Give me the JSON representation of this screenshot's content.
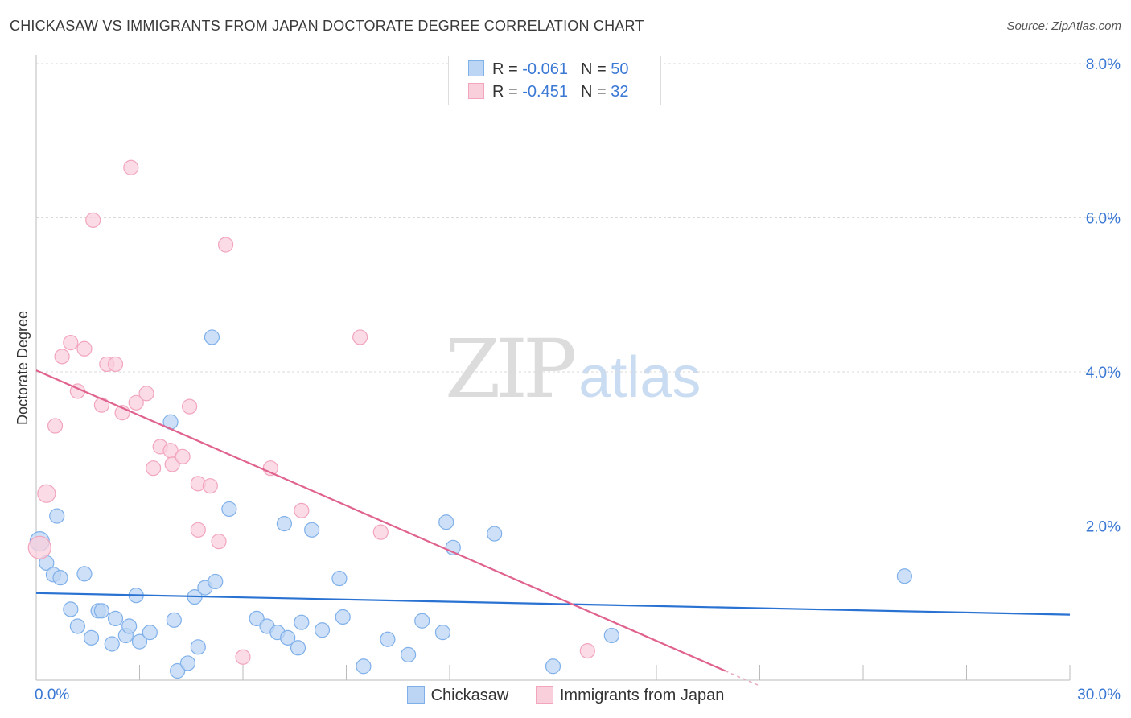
{
  "title": "CHICKASAW VS IMMIGRANTS FROM JAPAN DOCTORATE DEGREE CORRELATION CHART",
  "source": "Source: ZipAtlas.com",
  "watermark": {
    "zip": "ZIP",
    "atlas": "atlas"
  },
  "legend": {
    "rows": [
      {
        "r_label": "R = ",
        "r_value": "-0.061",
        "n_label": "N = ",
        "n_value": "50"
      },
      {
        "r_label": "R = ",
        "r_value": "-0.451",
        "n_label": "N = ",
        "n_value": "32"
      }
    ]
  },
  "chart_data": {
    "type": "scatter",
    "title": "CHICKASAW VS IMMIGRANTS FROM JAPAN DOCTORATE DEGREE CORRELATION CHART",
    "xlabel": "",
    "ylabel": "Doctorate Degree",
    "xlim": [
      0,
      30
    ],
    "ylim": [
      0,
      8.0
    ],
    "x_tick_labels": [
      "0.0%",
      "30.0%"
    ],
    "y_tick_labels": [
      "2.0%",
      "4.0%",
      "6.0%",
      "8.0%"
    ],
    "y_ticks": [
      2.0,
      4.0,
      6.0,
      8.0
    ],
    "grid": true,
    "legend_position": "top-center",
    "series": [
      {
        "name": "Chickasaw",
        "color": "#7fb0ea",
        "fill": "#bcd5f4",
        "line_color": "#2a72d2",
        "r": "-0.061",
        "n": "50",
        "trend": {
          "x": [
            0,
            30
          ],
          "y": [
            1.13,
            0.85
          ]
        },
        "points": [
          [
            0.1,
            1.8,
            12
          ],
          [
            0.3,
            1.52,
            9
          ],
          [
            0.5,
            1.37,
            9
          ],
          [
            0.6,
            2.13,
            9
          ],
          [
            0.7,
            1.33,
            9
          ],
          [
            1.0,
            0.92,
            9
          ],
          [
            1.2,
            0.7,
            9
          ],
          [
            1.4,
            1.38,
            9
          ],
          [
            1.6,
            0.55,
            9
          ],
          [
            1.8,
            0.9,
            9
          ],
          [
            1.9,
            0.9,
            9
          ],
          [
            2.2,
            0.47,
            9
          ],
          [
            2.3,
            0.8,
            9
          ],
          [
            2.6,
            0.58,
            9
          ],
          [
            2.7,
            0.7,
            9
          ],
          [
            2.9,
            1.1,
            9
          ],
          [
            3.0,
            0.5,
            9
          ],
          [
            3.3,
            0.62,
            9
          ],
          [
            3.9,
            3.35,
            9
          ],
          [
            4.0,
            0.78,
            9
          ],
          [
            4.1,
            0.12,
            9
          ],
          [
            4.4,
            0.22,
            9
          ],
          [
            4.6,
            1.08,
            9
          ],
          [
            4.7,
            0.43,
            9
          ],
          [
            4.9,
            1.2,
            9
          ],
          [
            5.2,
            1.28,
            9
          ],
          [
            5.1,
            4.45,
            9
          ],
          [
            5.6,
            2.22,
            9
          ],
          [
            6.4,
            0.8,
            9
          ],
          [
            6.7,
            0.7,
            9
          ],
          [
            7.0,
            0.62,
            9
          ],
          [
            7.2,
            2.03,
            9
          ],
          [
            7.3,
            0.55,
            9
          ],
          [
            7.6,
            0.42,
            9
          ],
          [
            7.7,
            0.75,
            9
          ],
          [
            8.0,
            1.95,
            9
          ],
          [
            8.3,
            0.65,
            9
          ],
          [
            8.8,
            1.32,
            9
          ],
          [
            8.9,
            0.82,
            9
          ],
          [
            9.5,
            0.18,
            9
          ],
          [
            10.2,
            0.53,
            9
          ],
          [
            10.8,
            0.33,
            9
          ],
          [
            11.2,
            0.77,
            9
          ],
          [
            11.8,
            0.62,
            9
          ],
          [
            11.9,
            2.05,
            9
          ],
          [
            12.1,
            1.72,
            9
          ],
          [
            13.3,
            1.9,
            9
          ],
          [
            15.0,
            0.18,
            9
          ],
          [
            16.7,
            0.58,
            9
          ],
          [
            25.2,
            1.35,
            9
          ]
        ]
      },
      {
        "name": "Immigrants from Japan",
        "color": "#f2a5bd",
        "fill": "#f9cfdc",
        "line_color": "#e0628f",
        "r": "-0.451",
        "n": "32",
        "trend": {
          "x": [
            0,
            20.0
          ],
          "y": [
            4.02,
            0.12
          ]
        },
        "points": [
          [
            0.1,
            1.72,
            14
          ],
          [
            0.3,
            2.42,
            11
          ],
          [
            0.55,
            3.3,
            9
          ],
          [
            0.75,
            4.2,
            9
          ],
          [
            1.0,
            4.38,
            9
          ],
          [
            1.2,
            3.75,
            9
          ],
          [
            1.4,
            4.3,
            9
          ],
          [
            1.65,
            5.97,
            9
          ],
          [
            1.9,
            3.57,
            9
          ],
          [
            2.05,
            4.1,
            9
          ],
          [
            2.3,
            4.1,
            9
          ],
          [
            2.5,
            3.47,
            9
          ],
          [
            2.75,
            6.65,
            9
          ],
          [
            2.9,
            3.6,
            9
          ],
          [
            3.2,
            3.72,
            9
          ],
          [
            3.4,
            2.75,
            9
          ],
          [
            3.6,
            3.03,
            9
          ],
          [
            3.9,
            2.98,
            9
          ],
          [
            3.95,
            2.8,
            9
          ],
          [
            4.25,
            2.9,
            9
          ],
          [
            4.45,
            3.55,
            9
          ],
          [
            4.7,
            2.55,
            9
          ],
          [
            4.7,
            1.95,
            9
          ],
          [
            5.05,
            2.52,
            9
          ],
          [
            5.3,
            1.8,
            9
          ],
          [
            5.5,
            5.65,
            9
          ],
          [
            6.0,
            0.3,
            9
          ],
          [
            6.8,
            2.75,
            9
          ],
          [
            7.7,
            2.2,
            9
          ],
          [
            9.4,
            4.45,
            9
          ],
          [
            10.0,
            1.92,
            9
          ],
          [
            16.0,
            0.38,
            9
          ]
        ]
      }
    ]
  }
}
